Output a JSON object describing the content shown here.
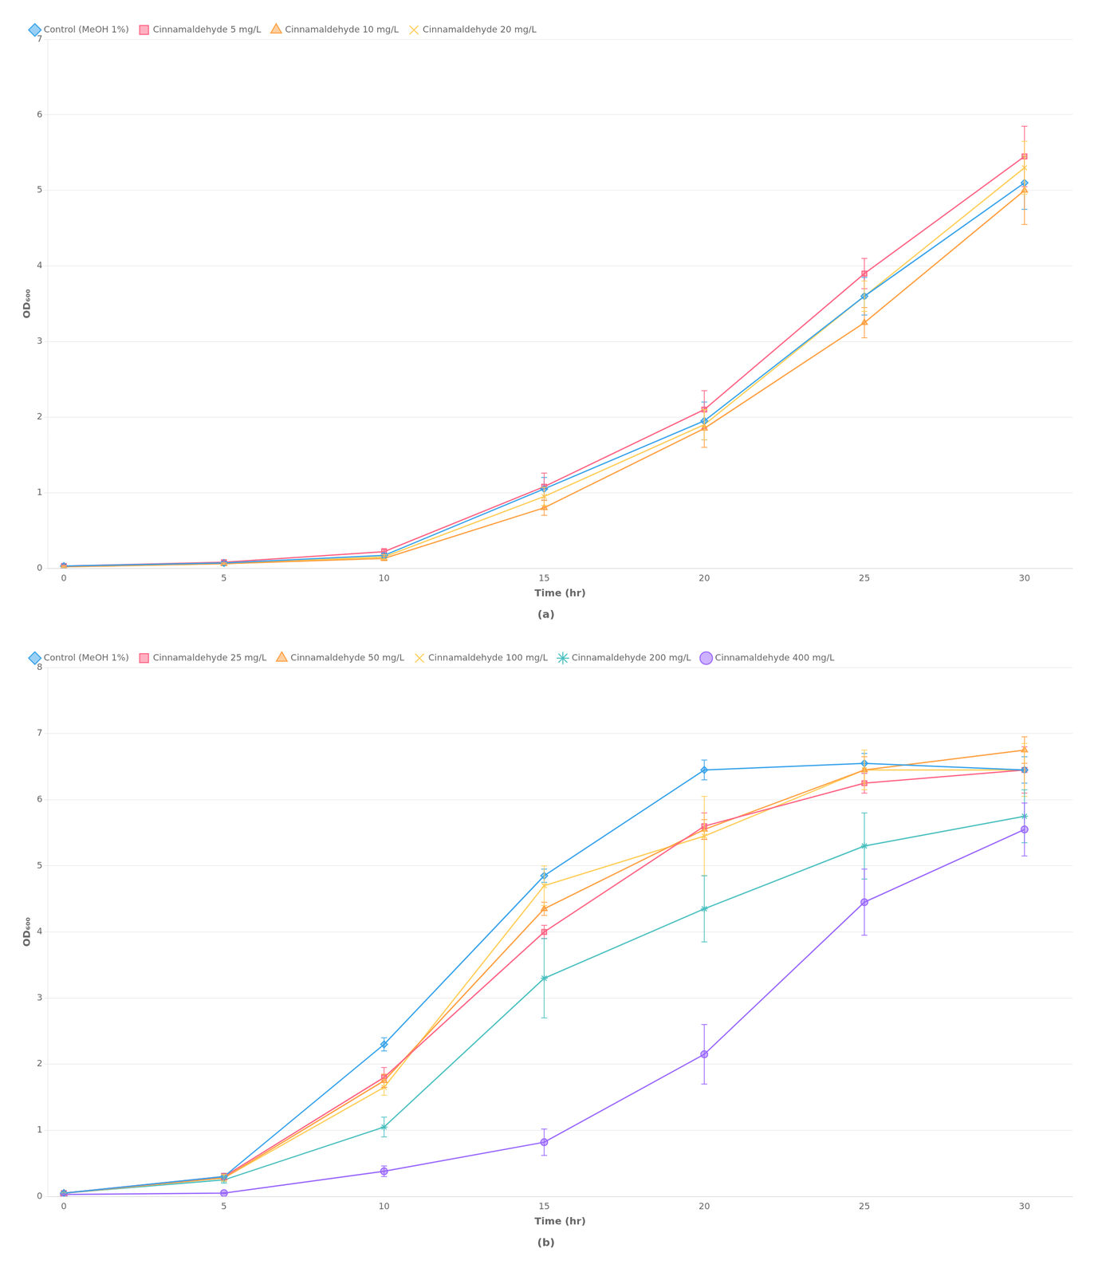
{
  "chart_data": [
    {
      "type": "line",
      "title": "(a)",
      "xlabel": "Time (hr)",
      "ylabel": "OD₆₀₀",
      "x": [
        0,
        5,
        10,
        15,
        20,
        25,
        30
      ],
      "xlim": [
        -0.5,
        31.5
      ],
      "xticks": [
        0,
        5,
        10,
        15,
        20,
        25,
        30
      ],
      "ylim": [
        0,
        7
      ],
      "yticks": [
        0,
        1,
        2,
        3,
        4,
        5,
        6,
        7
      ],
      "grid": "y",
      "legend": "upper left",
      "series": [
        {
          "name": "Control (MeOH 1%)",
          "marker": "diamond",
          "values": [
            0.03,
            0.07,
            0.17,
            1.05,
            1.95,
            3.6,
            5.1
          ],
          "errors": [
            0.01,
            0.02,
            0.03,
            0.15,
            0.25,
            0.25,
            0.35
          ]
        },
        {
          "name": "Cinnamaldehyde 5 mg/L",
          "marker": "square",
          "values": [
            0.03,
            0.08,
            0.22,
            1.08,
            2.1,
            3.9,
            5.45
          ],
          "errors": [
            0.01,
            0.02,
            0.04,
            0.18,
            0.25,
            0.2,
            0.4
          ]
        },
        {
          "name": "Cinnamaldehyde 10 mg/L",
          "marker": "triangle",
          "values": [
            0.02,
            0.06,
            0.13,
            0.8,
            1.85,
            3.25,
            5.0
          ],
          "errors": [
            0.01,
            0.01,
            0.03,
            0.1,
            0.25,
            0.2,
            0.45
          ]
        },
        {
          "name": "Cinnamaldehyde 20 mg/L",
          "marker": "x",
          "values": [
            0.02,
            0.06,
            0.15,
            0.95,
            1.9,
            3.6,
            5.3
          ],
          "errors": [
            0.01,
            0.01,
            0.03,
            0.12,
            0.2,
            0.2,
            0.35
          ]
        }
      ]
    },
    {
      "type": "line",
      "title": "(b)",
      "xlabel": "Time (hr)",
      "ylabel": "OD₆₀₀",
      "x": [
        0,
        5,
        10,
        15,
        20,
        25,
        30
      ],
      "xlim": [
        -0.5,
        31.5
      ],
      "xticks": [
        0,
        5,
        10,
        15,
        20,
        25,
        30
      ],
      "ylim": [
        0,
        8
      ],
      "yticks": [
        0,
        1,
        2,
        3,
        4,
        5,
        6,
        7,
        8
      ],
      "grid": "y",
      "legend": "upper left",
      "series": [
        {
          "name": "Control (MeOH 1%)",
          "marker": "diamond",
          "values": [
            0.05,
            0.3,
            2.3,
            4.85,
            6.45,
            6.55,
            6.45
          ],
          "errors": [
            0.01,
            0.05,
            0.1,
            0.1,
            0.15,
            0.15,
            0.2
          ]
        },
        {
          "name": "Cinnamaldehyde 25 mg/L",
          "marker": "square",
          "values": [
            0.05,
            0.3,
            1.8,
            4.0,
            5.6,
            6.25,
            6.45
          ],
          "errors": [
            0.01,
            0.05,
            0.15,
            0.1,
            0.2,
            0.15,
            0.35
          ]
        },
        {
          "name": "Cinnamaldehyde 50 mg/L",
          "marker": "triangle",
          "values": [
            0.05,
            0.28,
            1.75,
            4.35,
            5.55,
            6.45,
            6.75
          ],
          "errors": [
            0.01,
            0.05,
            0.1,
            0.1,
            0.15,
            0.2,
            0.2
          ]
        },
        {
          "name": "Cinnamaldehyde 100 mg/L",
          "marker": "x",
          "values": [
            0.05,
            0.28,
            1.65,
            4.7,
            5.45,
            6.45,
            6.45
          ],
          "errors": [
            0.01,
            0.05,
            0.12,
            0.3,
            0.6,
            0.3,
            0.4
          ]
        },
        {
          "name": "Cinnamaldehyde 200 mg/L",
          "marker": "star",
          "values": [
            0.05,
            0.25,
            1.05,
            3.3,
            4.35,
            5.3,
            5.75
          ],
          "errors": [
            0.01,
            0.05,
            0.15,
            0.6,
            0.5,
            0.5,
            0.4
          ]
        },
        {
          "name": "Cinnamaldehyde 400 mg/L",
          "marker": "circle",
          "values": [
            0.03,
            0.05,
            0.38,
            0.82,
            2.15,
            4.45,
            5.55
          ],
          "errors": [
            0.01,
            0.01,
            0.08,
            0.2,
            0.45,
            0.5,
            0.4
          ]
        }
      ]
    }
  ]
}
